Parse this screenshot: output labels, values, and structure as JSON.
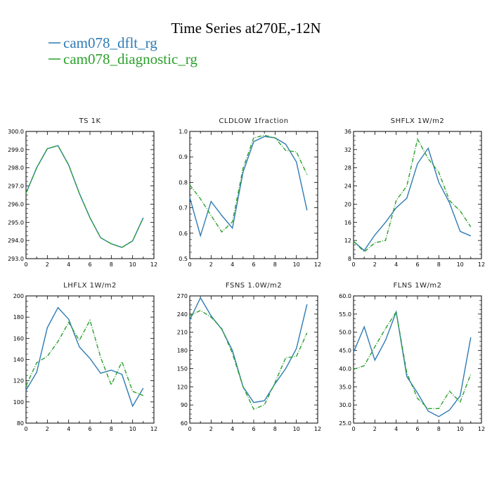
{
  "figure": {
    "title": "Time Series at270E,-12N",
    "legend": [
      {
        "label": "cam078_dflt_rg",
        "color": "#2e7bb4"
      },
      {
        "label": "cam078_diagnostic_rg",
        "color": "#2ca02c"
      }
    ]
  },
  "chart_data": [
    {
      "type": "line",
      "title": "TS   1K",
      "xlim": [
        0,
        12
      ],
      "xticks": [
        "0",
        "2",
        "4",
        "6",
        "8",
        "10",
        "12"
      ],
      "ylim": [
        293,
        300
      ],
      "yticks": [
        "293.0",
        "294.0",
        "295.0",
        "296.0",
        "297.0",
        "298.0",
        "299.0",
        "300.0"
      ],
      "x": [
        0,
        1,
        2,
        3,
        4,
        5,
        6,
        7,
        8,
        9,
        10,
        11
      ],
      "series": [
        {
          "name": "cam078_dflt_rg",
          "values": [
            296.6,
            298.0,
            299.05,
            299.22,
            298.15,
            296.6,
            295.25,
            294.15,
            293.82,
            293.62,
            293.98,
            295.25
          ]
        },
        {
          "name": "cam078_diagnostic_rg",
          "values": [
            296.6,
            298.0,
            299.05,
            299.22,
            298.15,
            296.6,
            295.25,
            294.15,
            293.82,
            293.62,
            293.98,
            295.25
          ]
        }
      ]
    },
    {
      "type": "line",
      "title": "CLDLOW   1fraction",
      "xlim": [
        0,
        12
      ],
      "xticks": [
        "0",
        "2",
        "4",
        "6",
        "8",
        "10",
        "12"
      ],
      "ylim": [
        0.5,
        1.0
      ],
      "yticks": [
        "0.5",
        "0.6",
        "0.7",
        "0.8",
        "0.9",
        "1.0"
      ],
      "x": [
        0,
        1,
        2,
        3,
        4,
        5,
        6,
        7,
        8,
        9,
        10,
        11
      ],
      "series": [
        {
          "name": "cam078_dflt_rg",
          "values": [
            0.74,
            0.59,
            0.725,
            0.67,
            0.62,
            0.84,
            0.96,
            0.98,
            0.975,
            0.95,
            0.88,
            0.69
          ]
        },
        {
          "name": "cam078_diagnostic_rg",
          "values": [
            0.79,
            0.735,
            0.67,
            0.605,
            0.645,
            0.855,
            0.975,
            0.985,
            0.975,
            0.925,
            0.92,
            0.83
          ]
        }
      ]
    },
    {
      "type": "line",
      "title": "SHFLX   1W/m2",
      "xlim": [
        0,
        12
      ],
      "xticks": [
        "0",
        "2",
        "4",
        "6",
        "8",
        "10",
        "12"
      ],
      "ylim": [
        8,
        36
      ],
      "yticks": [
        "8",
        "12",
        "16",
        "20",
        "24",
        "28",
        "32",
        "36"
      ],
      "x": [
        0,
        1,
        2,
        3,
        4,
        5,
        6,
        7,
        8,
        9,
        10,
        11
      ],
      "series": [
        {
          "name": "cam078_dflt_rg",
          "values": [
            11.8,
            9.8,
            13.2,
            16.0,
            19.2,
            21.3,
            28.9,
            32.3,
            24.8,
            20.3,
            14.0,
            13.0
          ]
        },
        {
          "name": "cam078_diagnostic_rg",
          "values": [
            11.8,
            9.5,
            11.5,
            12.0,
            20.8,
            24.0,
            34.3,
            30.0,
            27.0,
            20.8,
            18.5,
            15.0
          ]
        }
      ]
    },
    {
      "type": "line",
      "title": "LHFLX   1W/m2",
      "xlim": [
        0,
        12
      ],
      "xticks": [
        "0",
        "2",
        "4",
        "6",
        "8",
        "10",
        "12"
      ],
      "ylim": [
        80,
        200
      ],
      "yticks": [
        "80",
        "100",
        "120",
        "140",
        "160",
        "180",
        "200"
      ],
      "x": [
        0,
        1,
        2,
        3,
        4,
        5,
        6,
        7,
        8,
        9,
        10,
        11
      ],
      "series": [
        {
          "name": "cam078_dflt_rg",
          "values": [
            111,
            128,
            170,
            189,
            178,
            152,
            141,
            127,
            130,
            126,
            96,
            113
          ]
        },
        {
          "name": "cam078_diagnostic_rg",
          "values": [
            115,
            137,
            143,
            157,
            175,
            158,
            177,
            142,
            116,
            138,
            110,
            106
          ]
        }
      ]
    },
    {
      "type": "line",
      "title": "FSNS   1.0W/m2",
      "xlim": [
        0,
        12
      ],
      "xticks": [
        "0",
        "2",
        "4",
        "6",
        "8",
        "10",
        "12"
      ],
      "ylim": [
        60,
        270
      ],
      "yticks": [
        "60",
        "90",
        "120",
        "150",
        "180",
        "210",
        "240",
        "270"
      ],
      "x": [
        0,
        1,
        2,
        3,
        4,
        5,
        6,
        7,
        8,
        9,
        10,
        11
      ],
      "series": [
        {
          "name": "cam078_dflt_rg",
          "values": [
            230,
            267,
            237,
            215,
            180,
            120,
            94,
            97,
            125,
            150,
            183,
            256
          ]
        },
        {
          "name": "cam078_diagnostic_rg",
          "values": [
            237,
            246,
            235,
            216,
            175,
            120,
            83,
            90,
            127,
            168,
            170,
            209
          ]
        }
      ]
    },
    {
      "type": "line",
      "title": "FLNS   1W/m2",
      "xlim": [
        0,
        12
      ],
      "xticks": [
        "0",
        "2",
        "4",
        "6",
        "8",
        "10",
        "12"
      ],
      "ylim": [
        25,
        60
      ],
      "yticks": [
        "25.0",
        "30.0",
        "35.0",
        "40.0",
        "45.0",
        "50.0",
        "55.0",
        "60.0"
      ],
      "x": [
        0,
        1,
        2,
        3,
        4,
        5,
        6,
        7,
        8,
        9,
        10,
        11
      ],
      "series": [
        {
          "name": "cam078_dflt_rg",
          "values": [
            44.5,
            51.5,
            42.3,
            47.8,
            55.6,
            37.8,
            33.3,
            28.3,
            26.8,
            28.6,
            32.5,
            48.6
          ]
        },
        {
          "name": "cam078_diagnostic_rg",
          "values": [
            39.8,
            40.8,
            46.0,
            51.0,
            55.6,
            38.8,
            31.8,
            29.0,
            29.0,
            33.8,
            30.8,
            38.5
          ]
        }
      ]
    }
  ]
}
